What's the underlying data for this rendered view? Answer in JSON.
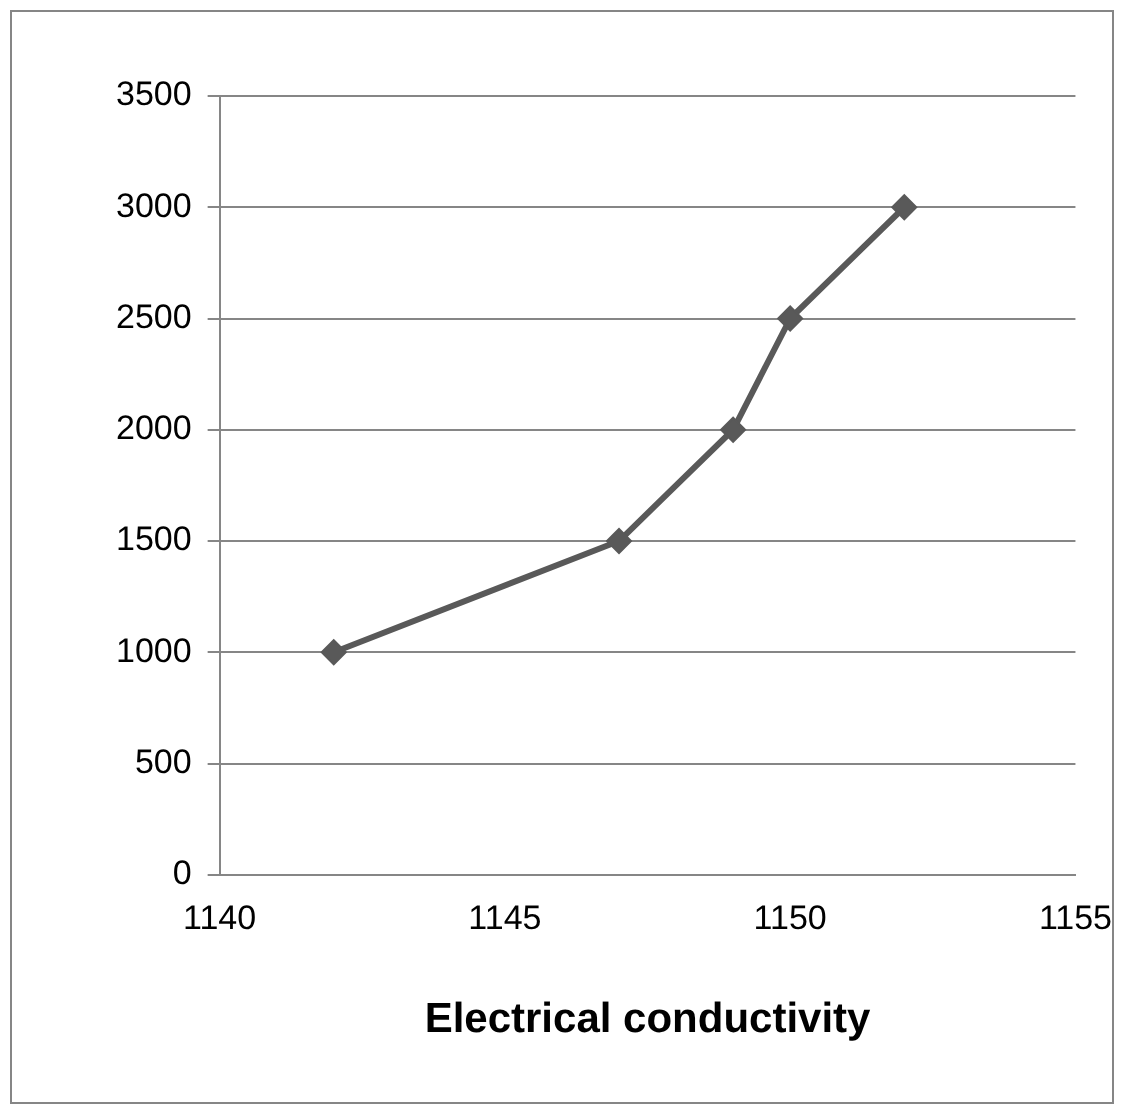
{
  "chart_data": {
    "type": "line",
    "xlabel": "Electrical conductivity",
    "x": [
      1142,
      1147,
      1149,
      1150,
      1152
    ],
    "series": [
      {
        "color": "#595959",
        "values": [
          1000,
          1500,
          2000,
          2500,
          3000
        ]
      }
    ],
    "xlim": [
      1140,
      1155
    ],
    "xticks": [
      1140,
      1145,
      1150,
      1155
    ],
    "ylim": [
      0,
      3500
    ],
    "yticks": [
      0,
      500,
      1000,
      1500,
      2000,
      2500,
      3000,
      3500
    ],
    "grid": "y",
    "legend": false,
    "marker": "diamond",
    "line_style": "solid"
  }
}
